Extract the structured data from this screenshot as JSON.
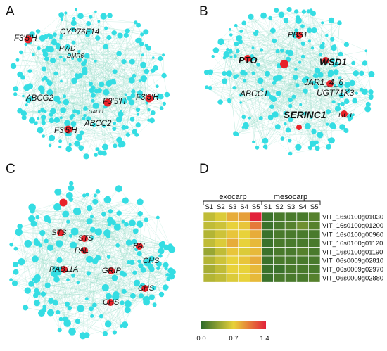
{
  "panels": {
    "A": {
      "letter": "A",
      "labels": [
        "F3'5'H",
        "CYP76F14",
        "PWD",
        "DMR6",
        "ABCG2",
        "F3'5'H",
        "F3'5'H",
        "GALT1",
        "ABCC2",
        "F3'5'H"
      ]
    },
    "B": {
      "letter": "B",
      "labels": [
        "PBS1",
        "PTO",
        "WSD1",
        "JAR1_4_6",
        "ABCC1",
        "UGT71K3",
        "SERINC1",
        "HCT"
      ]
    },
    "C": {
      "letter": "C",
      "labels": [
        "STS",
        "STS",
        "PAL",
        "PAL",
        "CHS",
        "RAB11A",
        "GRIP",
        "CHS",
        "CHS"
      ]
    },
    "D": {
      "letter": "D",
      "groups": [
        "exocarp",
        "mesocarp"
      ],
      "columns": [
        "S1",
        "S2",
        "S3",
        "S4",
        "S5",
        "S1",
        "S2",
        "S3",
        "S4",
        "S5"
      ],
      "colorbar": {
        "ticks": [
          "0.0",
          "0.7",
          "1.4"
        ],
        "colors": [
          "#2e6b2a",
          "#e8d23a",
          "#e2213a"
        ]
      }
    }
  },
  "chart_data": {
    "type": "heatmap",
    "rows": [
      "VIT_16s0100g01030",
      "VIT_16s0100g01200",
      "VIT_16s0100g00960",
      "VIT_16s0100g01120",
      "VIT_16s0100g01190",
      "VIT_06s0009g02810",
      "VIT_06s0009g02970",
      "VIT_06s0009g02880"
    ],
    "columns": [
      "S1",
      "S2",
      "S3",
      "S4",
      "S5",
      "S1",
      "S2",
      "S3",
      "S4",
      "S5"
    ],
    "column_groups": [
      "exocarp",
      "mesocarp"
    ],
    "values": [
      [
        0.55,
        0.65,
        0.85,
        0.9,
        1.4,
        0.05,
        0.1,
        0.1,
        0.1,
        0.15
      ],
      [
        0.55,
        0.6,
        0.7,
        0.75,
        1.05,
        0.05,
        0.1,
        0.15,
        0.25,
        0.15
      ],
      [
        0.5,
        0.6,
        0.75,
        0.7,
        0.85,
        0.05,
        0.1,
        0.1,
        0.1,
        0.1
      ],
      [
        0.55,
        0.65,
        0.85,
        0.7,
        0.8,
        0.05,
        0.1,
        0.1,
        0.1,
        0.1
      ],
      [
        0.4,
        0.55,
        0.75,
        0.65,
        0.8,
        0.05,
        0.1,
        0.1,
        0.15,
        0.1
      ],
      [
        0.5,
        0.6,
        0.7,
        0.75,
        0.85,
        0.05,
        0.1,
        0.1,
        0.1,
        0.1
      ],
      [
        0.45,
        0.55,
        0.7,
        0.7,
        0.8,
        0.05,
        0.05,
        0.1,
        0.1,
        0.1
      ],
      [
        0.5,
        0.55,
        0.65,
        0.7,
        0.8,
        0.05,
        0.1,
        0.1,
        0.1,
        0.15
      ]
    ],
    "range": [
      0,
      1.4
    ]
  }
}
